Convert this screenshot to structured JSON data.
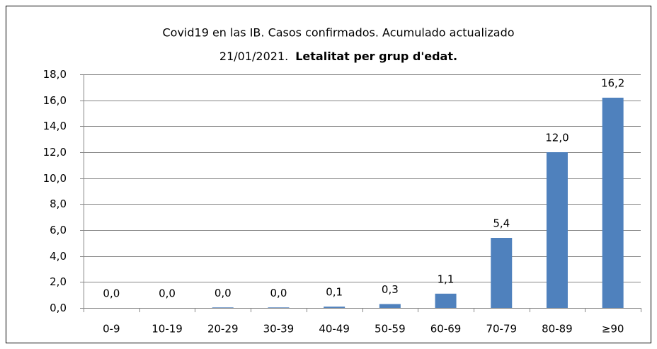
{
  "chart_data": {
    "type": "bar",
    "title": [
      "Covid19 en las IB. Casos confirmados. Acumulado actualizado",
      "21/01/2021.",
      "Letalitat per grup d'edat."
    ],
    "categories": [
      "0-9",
      "10-19",
      "20-29",
      "30-39",
      "40-49",
      "50-59",
      "60-69",
      "70-79",
      "80-89",
      "≥90"
    ],
    "values": [
      0,
      0,
      0.04,
      0.04,
      0.1,
      0.3,
      1.1,
      5.4,
      12.0,
      16.2
    ],
    "value_labels": [
      "0,0",
      "0,0",
      "0,0",
      "0,0",
      "0,1",
      "0,3",
      "1,1",
      "5,4",
      "12,0",
      "16,2"
    ],
    "color": "#4f81bd",
    "ylim": [
      0,
      18
    ],
    "yticks": [
      {
        "value": 0,
        "label": "0,0"
      },
      {
        "value": 2,
        "label": "2,0"
      },
      {
        "value": 4,
        "label": "4,0"
      },
      {
        "value": 6,
        "label": "6,0"
      },
      {
        "value": 8,
        "label": "8,0"
      },
      {
        "value": 10,
        "label": "10,0"
      },
      {
        "value": 12,
        "label": "12,0"
      },
      {
        "value": 14,
        "label": "14,0"
      },
      {
        "value": 16,
        "label": "16,0"
      },
      {
        "value": 18,
        "label": "18,0"
      }
    ],
    "grid": true
  }
}
